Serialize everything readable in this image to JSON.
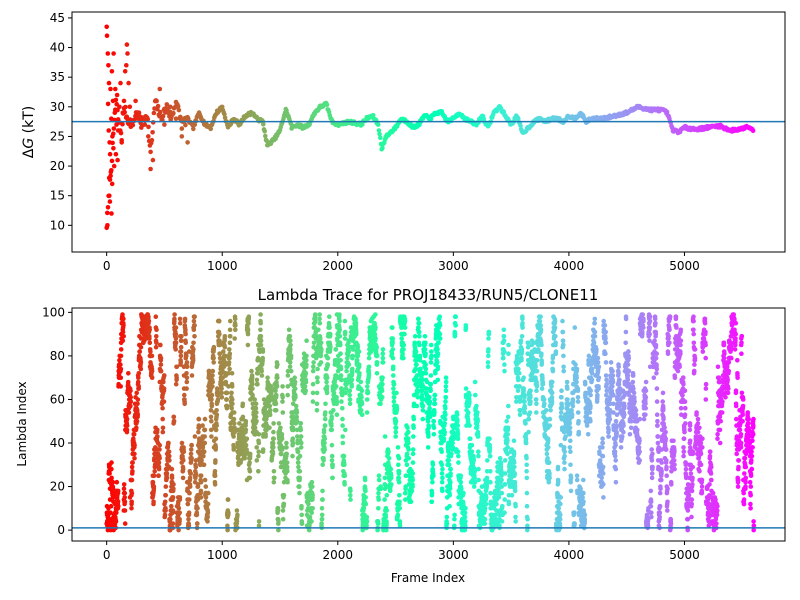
{
  "chart_data": [
    {
      "type": "scatter",
      "title": "",
      "xlabel": "",
      "ylabel": "ΔG (kT)",
      "ylabel_symbol": "Δ",
      "ylabel_italic": "G",
      "ylabel_unit": " (kT)",
      "xlim": [
        -300,
        5870
      ],
      "ylim": [
        5.5,
        46
      ],
      "xticks": [
        0,
        1000,
        2000,
        3000,
        4000,
        5000
      ],
      "yticks": [
        10,
        15,
        20,
        25,
        30,
        35,
        40,
        45
      ],
      "colormap": "rainbow",
      "hline": {
        "y": 27.5,
        "color": "#1f77b4"
      },
      "grid": false,
      "series": [
        {
          "x_range": [
            0,
            5600
          ],
          "trace_points": [
            [
              0,
              10
            ],
            [
              40,
              20
            ],
            [
              80,
              31
            ],
            [
              100,
              28
            ],
            [
              130,
              25
            ],
            [
              150,
              30
            ],
            [
              180,
              28
            ],
            [
              220,
              27
            ],
            [
              260,
              29
            ],
            [
              300,
              27
            ],
            [
              350,
              29
            ],
            [
              380,
              22
            ],
            [
              420,
              31
            ],
            [
              470,
              28
            ],
            [
              520,
              30
            ],
            [
              560,
              28
            ],
            [
              600,
              31
            ],
            [
              650,
              27
            ],
            [
              700,
              28
            ],
            [
              750,
              26.5
            ],
            [
              800,
              29
            ],
            [
              850,
              27
            ],
            [
              900,
              26.5
            ],
            [
              950,
              29
            ],
            [
              1000,
              30
            ],
            [
              1050,
              26.5
            ],
            [
              1100,
              28
            ],
            [
              1150,
              27
            ],
            [
              1200,
              28.5
            ],
            [
              1260,
              29
            ],
            [
              1300,
              28
            ],
            [
              1350,
              27.5
            ],
            [
              1390,
              23.5
            ],
            [
              1450,
              24.5
            ],
            [
              1500,
              26
            ],
            [
              1550,
              29.5
            ],
            [
              1580,
              28
            ],
            [
              1600,
              26.5
            ],
            [
              1650,
              27
            ],
            [
              1700,
              26.5
            ],
            [
              1750,
              27
            ],
            [
              1800,
              29
            ],
            [
              1850,
              30
            ],
            [
              1900,
              30.5
            ],
            [
              1950,
              27.5
            ],
            [
              2000,
              27
            ],
            [
              2100,
              27.5
            ],
            [
              2200,
              27
            ],
            [
              2250,
              28
            ],
            [
              2300,
              28.5
            ],
            [
              2350,
              27
            ],
            [
              2380,
              23
            ],
            [
              2420,
              25
            ],
            [
              2500,
              26.5
            ],
            [
              2550,
              28
            ],
            [
              2600,
              27.5
            ],
            [
              2650,
              26.5
            ],
            [
              2700,
              27
            ],
            [
              2750,
              28.5
            ],
            [
              2800,
              28
            ],
            [
              2850,
              29
            ],
            [
              2900,
              29
            ],
            [
              2950,
              27.5
            ],
            [
              3000,
              28
            ],
            [
              3050,
              29
            ],
            [
              3100,
              28
            ],
            [
              3150,
              27.5
            ],
            [
              3200,
              27
            ],
            [
              3250,
              28.5
            ],
            [
              3300,
              26.5
            ],
            [
              3350,
              29
            ],
            [
              3400,
              30
            ],
            [
              3450,
              28.5
            ],
            [
              3500,
              27
            ],
            [
              3550,
              28.5
            ],
            [
              3600,
              25.5
            ],
            [
              3650,
              26.5
            ],
            [
              3700,
              27.5
            ],
            [
              3750,
              28
            ],
            [
              3800,
              27.5
            ],
            [
              3850,
              28
            ],
            [
              3900,
              28
            ],
            [
              3950,
              27.5
            ],
            [
              4000,
              28.5
            ],
            [
              4050,
              28
            ],
            [
              4100,
              29
            ],
            [
              4150,
              27.5
            ],
            [
              4200,
              28
            ],
            [
              4300,
              28
            ],
            [
              4400,
              28.5
            ],
            [
              4500,
              29
            ],
            [
              4600,
              30
            ],
            [
              4700,
              29.5
            ],
            [
              4800,
              29.5
            ],
            [
              4850,
              29
            ],
            [
              4900,
              26
            ],
            [
              4950,
              25.8
            ],
            [
              5000,
              26.5
            ],
            [
              5100,
              26.2
            ],
            [
              5200,
              26.5
            ],
            [
              5300,
              26.8
            ],
            [
              5400,
              26
            ],
            [
              5500,
              26.3
            ],
            [
              5550,
              26.8
            ],
            [
              5600,
              26
            ]
          ],
          "early_scatter": [
            [
              0,
              43.5
            ],
            [
              3,
              42
            ],
            [
              6,
              10
            ],
            [
              10,
              39
            ],
            [
              12,
              30.5
            ],
            [
              15,
              37
            ],
            [
              18,
              26
            ],
            [
              20,
              34
            ],
            [
              22,
              18
            ],
            [
              25,
              24
            ],
            [
              28,
              14
            ],
            [
              30,
              22
            ],
            [
              33,
              33
            ],
            [
              36,
              19
            ],
            [
              40,
              28
            ],
            [
              42,
              12
            ],
            [
              45,
              36
            ],
            [
              48,
              17
            ],
            [
              50,
              25
            ],
            [
              55,
              31
            ],
            [
              58,
              23
            ],
            [
              60,
              39
            ],
            [
              65,
              20
            ],
            [
              70,
              29
            ],
            [
              75,
              33
            ],
            [
              80,
              22
            ],
            [
              85,
              27
            ],
            [
              90,
              32
            ],
            [
              95,
              21
            ],
            [
              100,
              26
            ],
            [
              110,
              30
            ],
            [
              120,
              34
            ],
            [
              130,
              24
            ],
            [
              140,
              29
            ],
            [
              150,
              31
            ],
            [
              160,
              36
            ],
            [
              170,
              37
            ],
            [
              175,
              40.5
            ],
            [
              180,
              39
            ],
            [
              190,
              34
            ],
            [
              200,
              30
            ],
            [
              220,
              27
            ],
            [
              250,
              31
            ],
            [
              280,
              29
            ],
            [
              300,
              28
            ],
            [
              330,
              27
            ],
            [
              360,
              25
            ],
            [
              380,
              19.5
            ],
            [
              400,
              21
            ],
            [
              430,
              31
            ],
            [
              460,
              33
            ],
            [
              500,
              27
            ],
            [
              550,
              30
            ],
            [
              600,
              28
            ],
            [
              650,
              25
            ],
            [
              700,
              24
            ]
          ]
        }
      ]
    },
    {
      "type": "scatter",
      "title": "Lambda Trace for PROJ18433/RUN5/CLONE11",
      "xlabel": "Frame Index",
      "ylabel": "Lambda Index",
      "xlim": [
        -300,
        5870
      ],
      "ylim": [
        -5,
        102
      ],
      "xticks": [
        0,
        1000,
        2000,
        3000,
        4000,
        5000
      ],
      "yticks": [
        0,
        20,
        40,
        60,
        80,
        100
      ],
      "colormap": "rainbow",
      "hline": {
        "y": 1,
        "color": "#1f77b4"
      },
      "grid": false,
      "series": [
        {
          "x_range": [
            0,
            5600
          ],
          "y_range": [
            0,
            99
          ],
          "n_points": 5600
        }
      ]
    }
  ]
}
